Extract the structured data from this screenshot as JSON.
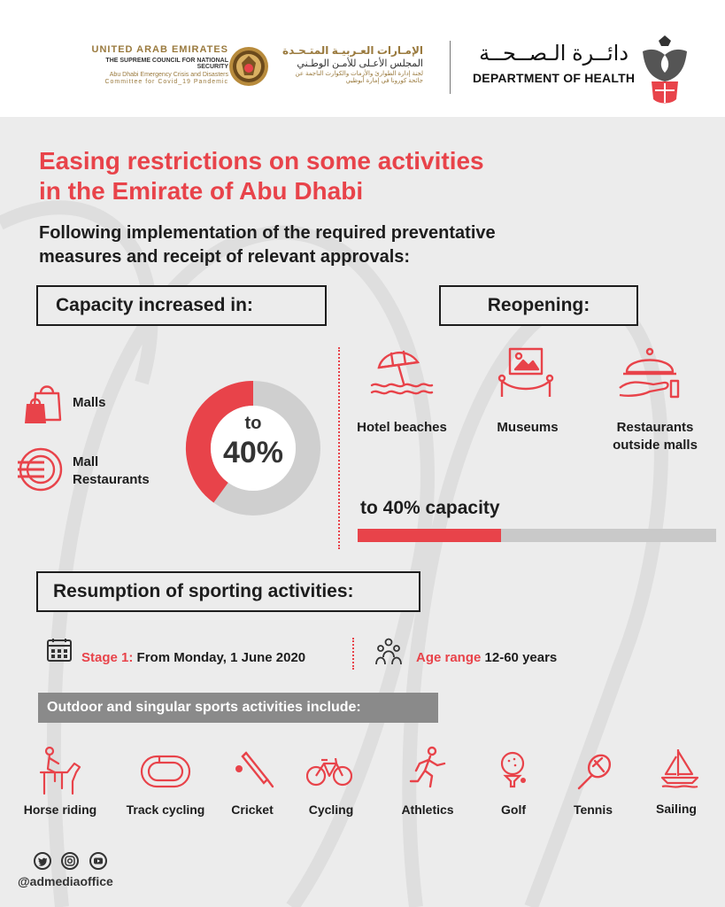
{
  "header": {
    "uae_en": {
      "line1": "UNITED ARAB EMIRATES",
      "line2": "THE SUPREME COUNCIL FOR NATIONAL SECURITY",
      "line3": "Abu Dhabi Emergency Crisis and Disasters",
      "line4": "Committee for Covid_19 Pandemic"
    },
    "uae_ar": {
      "line1": "الإمـارات العـربيـة المتـحـدة",
      "line2": "المجلس الأعـلى للأمـن الوطـني",
      "line3": "لجنة إدارة الطوارئ والأزمات والكوارث الناجمة عن",
      "line4": "جائحة كورونا في إمارة أبوظبي"
    },
    "doh_ar": "دائــرة الـصــحــة",
    "doh_en": "DEPARTMENT OF HEALTH",
    "seal_icon": "uae-emblem-seal-icon",
    "falcon_icon": "abu-dhabi-falcon-emblem-icon"
  },
  "title": {
    "line1": "Easing restrictions on some activities",
    "line2": "in the Emirate of Abu Dhabi"
  },
  "subtitle": {
    "line1": "Following implementation of the required preventative",
    "line2": "measures and receipt of relevant approvals:"
  },
  "capacity": {
    "heading": "Capacity increased in:",
    "items": [
      {
        "label": "Malls",
        "icon": "shopping-bags-icon"
      },
      {
        "label_line1": "Mall",
        "label_line2": "Restaurants",
        "icon": "plate-fork-icon"
      }
    ],
    "donut": {
      "prefix": "to",
      "value_label": "40%",
      "fraction": 0.4
    }
  },
  "reopening": {
    "heading": "Reopening:",
    "items": [
      {
        "label": "Hotel beaches",
        "icon": "beach-umbrella-icon"
      },
      {
        "label": "Museums",
        "icon": "museum-frame-icon"
      },
      {
        "label_line1": "Restaurants",
        "label_line2": "outside malls",
        "icon": "cloche-serving-icon"
      }
    ],
    "bar_label": "to 40% capacity",
    "bar_fraction": 0.4
  },
  "sports": {
    "heading": "Resumption of sporting activities:",
    "stage_label": "Stage 1:",
    "stage_text": "From Monday, 1 June 2020",
    "age_label": "Age range",
    "age_text": "12-60 years",
    "outdoor_label": "Outdoor and singular sports activities include:",
    "activities": [
      {
        "label": "Horse riding",
        "icon": "horse-riding-icon"
      },
      {
        "label": "Track cycling",
        "icon": "track-cycling-icon"
      },
      {
        "label": "Cricket",
        "icon": "cricket-bat-icon"
      },
      {
        "label": "Cycling",
        "icon": "bicycle-icon"
      },
      {
        "label": "Athletics",
        "icon": "running-icon"
      },
      {
        "label": "Golf",
        "icon": "golf-ball-icon"
      },
      {
        "label": "Tennis",
        "icon": "tennis-racket-icon"
      },
      {
        "label": "Sailing",
        "icon": "sailboat-icon"
      }
    ]
  },
  "footer": {
    "social_icons": [
      "twitter-icon",
      "instagram-icon",
      "youtube-icon"
    ],
    "handle": "@admediaoffice"
  },
  "colors": {
    "accent_red": "#e8434a",
    "background": "#ececec",
    "bar_grey": "#c9c9c9",
    "gold": "#9a7a3e"
  }
}
